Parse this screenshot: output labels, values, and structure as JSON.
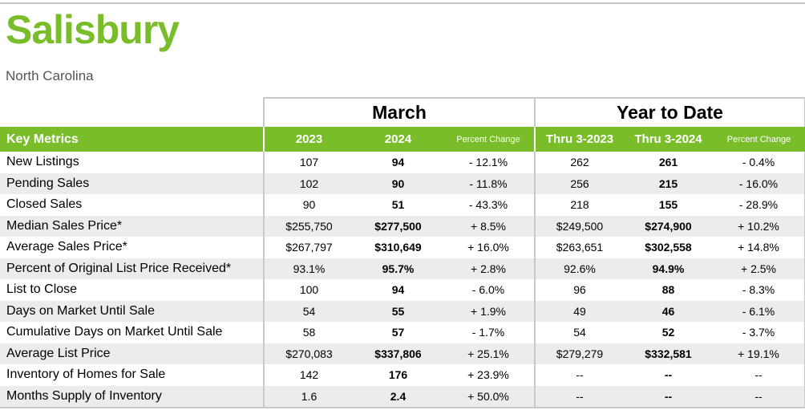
{
  "header": {
    "title": "Salisbury",
    "subtitle": "North Carolina"
  },
  "groups": {
    "month": "March",
    "ytd": "Year to Date"
  },
  "columns": {
    "key_metrics": "Key Metrics",
    "y2023": "2023",
    "y2024": "2024",
    "pct_change": "Percent Change",
    "thru_2023": "Thru 3-2023",
    "thru_2024": "Thru 3-2024",
    "pct_change_ytd": "Percent Change"
  },
  "rows": [
    {
      "metric": "New Listings",
      "m2023": "107",
      "m2024": "94",
      "mpct": "- 12.1%",
      "y2023": "262",
      "y2024": "261",
      "ypct": "- 0.4%"
    },
    {
      "metric": "Pending Sales",
      "m2023": "102",
      "m2024": "90",
      "mpct": "- 11.8%",
      "y2023": "256",
      "y2024": "215",
      "ypct": "- 16.0%"
    },
    {
      "metric": "Closed Sales",
      "m2023": "90",
      "m2024": "51",
      "mpct": "- 43.3%",
      "y2023": "218",
      "y2024": "155",
      "ypct": "- 28.9%"
    },
    {
      "metric": "Median Sales Price*",
      "m2023": "$255,750",
      "m2024": "$277,500",
      "mpct": "+ 8.5%",
      "y2023": "$249,500",
      "y2024": "$274,900",
      "ypct": "+ 10.2%"
    },
    {
      "metric": "Average Sales Price*",
      "m2023": "$267,797",
      "m2024": "$310,649",
      "mpct": "+ 16.0%",
      "y2023": "$263,651",
      "y2024": "$302,558",
      "ypct": "+ 14.8%"
    },
    {
      "metric": "Percent of Original List Price Received*",
      "m2023": "93.1%",
      "m2024": "95.7%",
      "mpct": "+ 2.8%",
      "y2023": "92.6%",
      "y2024": "94.9%",
      "ypct": "+ 2.5%"
    },
    {
      "metric": "List to Close",
      "m2023": "100",
      "m2024": "94",
      "mpct": "- 6.0%",
      "y2023": "96",
      "y2024": "88",
      "ypct": "- 8.3%"
    },
    {
      "metric": "Days on Market Until Sale",
      "m2023": "54",
      "m2024": "55",
      "mpct": "+ 1.9%",
      "y2023": "49",
      "y2024": "46",
      "ypct": "- 6.1%"
    },
    {
      "metric": "Cumulative Days on Market Until Sale",
      "m2023": "58",
      "m2024": "57",
      "mpct": "- 1.7%",
      "y2023": "54",
      "y2024": "52",
      "ypct": "- 3.7%"
    },
    {
      "metric": "Average List Price",
      "m2023": "$270,083",
      "m2024": "$337,806",
      "mpct": "+ 25.1%",
      "y2023": "$279,279",
      "y2024": "$332,581",
      "ypct": "+ 19.1%"
    },
    {
      "metric": "Inventory of Homes for Sale",
      "m2023": "142",
      "m2024": "176",
      "mpct": "+ 23.9%",
      "y2023": "--",
      "y2024": "--",
      "ypct": "--"
    },
    {
      "metric": "Months Supply of Inventory",
      "m2023": "1.6",
      "m2024": "2.4",
      "mpct": "+ 50.0%",
      "y2023": "--",
      "y2024": "--",
      "ypct": "--"
    }
  ],
  "colors": {
    "brand_green": "#79be2a",
    "stripe": "#ececec",
    "rule": "#c8c8c8"
  }
}
